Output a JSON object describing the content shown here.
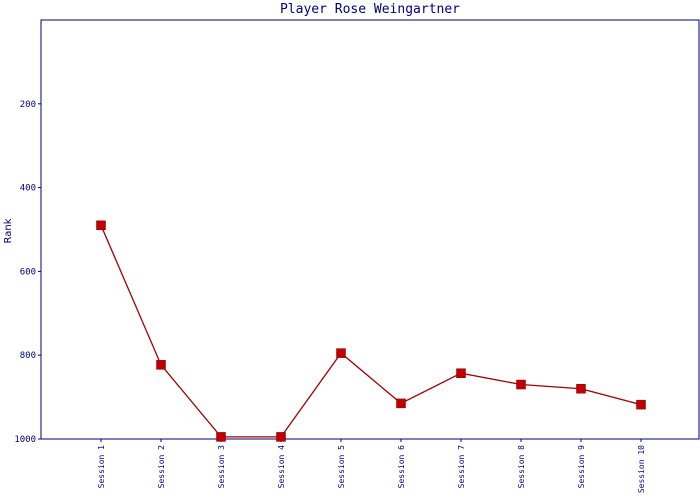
{
  "chart_data": {
    "type": "line",
    "title": "Player Rose Weingartner",
    "xlabel": "",
    "ylabel": "Rank",
    "y_inverted": true,
    "ylim": [
      0,
      1000
    ],
    "yticks": [
      200,
      400,
      600,
      800,
      1000
    ],
    "grid": false,
    "legend": "none",
    "categories": [
      "Session 1",
      "Session 2",
      "Session 3",
      "Session 4",
      "Session 5",
      "Session 6",
      "Session 7",
      "Session 8",
      "Session 9",
      "Session 10"
    ],
    "series": [
      {
        "values": [
          490,
          823,
          995,
          995,
          795,
          915,
          843,
          870,
          880,
          918
        ]
      }
    ],
    "colors": {
      "axis": "#000080",
      "title": "#000080",
      "tick_label": "#000080",
      "line": "#a00000",
      "marker": "#c00000",
      "background": "#ffffff"
    },
    "marker": "square"
  }
}
